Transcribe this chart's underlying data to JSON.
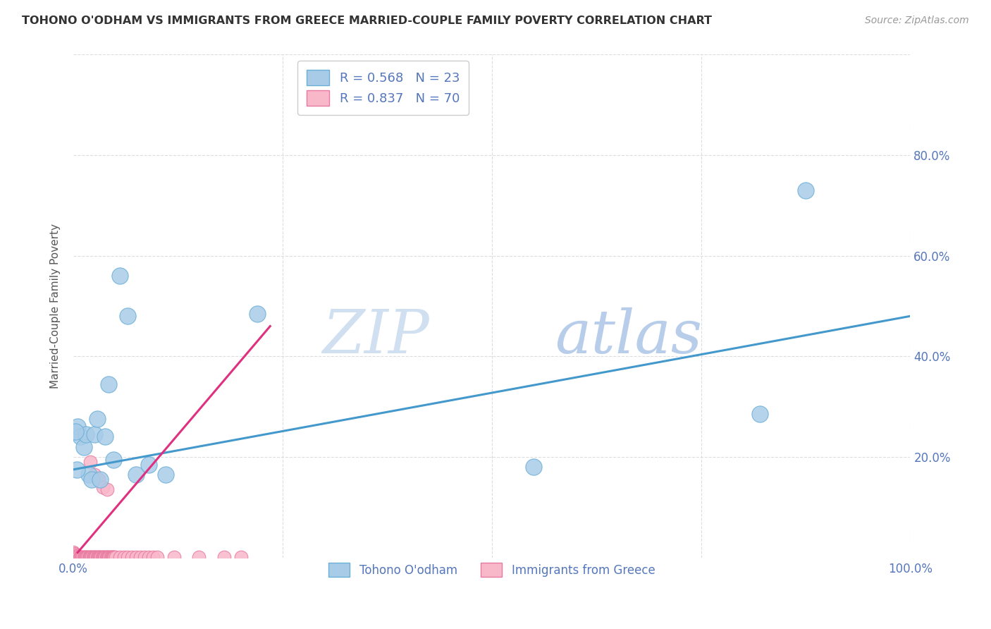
{
  "title": "TOHONO O'ODHAM VS IMMIGRANTS FROM GREECE MARRIED-COUPLE FAMILY POVERTY CORRELATION CHART",
  "source": "Source: ZipAtlas.com",
  "ylabel": "Married-Couple Family Poverty",
  "xlim": [
    0,
    1.0
  ],
  "ylim": [
    0,
    1.0
  ],
  "watermark_zip": "ZIP",
  "watermark_atlas": "atlas",
  "blue_scatter_color": "#a8cce8",
  "blue_scatter_edge": "#6aaed6",
  "pink_scatter_color": "#f9b8ca",
  "pink_scatter_edge": "#e87aa0",
  "blue_line_color": "#4499cc",
  "pink_line_color": "#e03080",
  "axis_tick_color": "#5577bb",
  "ylabel_color": "#555555",
  "title_color": "#333333",
  "source_color": "#999999",
  "grid_color": "#dddddd",
  "bg_color": "#ffffff",
  "legend_label_blue": "Tohono O'odham",
  "legend_label_pink": "Immigrants from Greece",
  "blue_scatter_x": [
    0.005,
    0.008,
    0.012,
    0.015,
    0.018,
    0.022,
    0.025,
    0.028,
    0.032,
    0.038,
    0.042,
    0.048,
    0.055,
    0.065,
    0.075,
    0.09,
    0.11,
    0.22,
    0.55,
    0.82,
    0.875,
    0.002,
    0.004
  ],
  "blue_scatter_y": [
    0.26,
    0.24,
    0.22,
    0.245,
    0.165,
    0.155,
    0.245,
    0.275,
    0.155,
    0.24,
    0.345,
    0.195,
    0.56,
    0.48,
    0.165,
    0.185,
    0.165,
    0.485,
    0.18,
    0.285,
    0.73,
    0.25,
    0.175
  ],
  "pink_scatter_x": [
    0.0,
    0.001,
    0.002,
    0.003,
    0.004,
    0.005,
    0.006,
    0.007,
    0.008,
    0.009,
    0.01,
    0.011,
    0.012,
    0.013,
    0.014,
    0.015,
    0.016,
    0.017,
    0.018,
    0.019,
    0.02,
    0.021,
    0.022,
    0.023,
    0.024,
    0.025,
    0.026,
    0.027,
    0.028,
    0.029,
    0.03,
    0.031,
    0.032,
    0.033,
    0.034,
    0.035,
    0.036,
    0.037,
    0.038,
    0.039,
    0.04,
    0.041,
    0.042,
    0.043,
    0.044,
    0.045,
    0.046,
    0.047,
    0.048,
    0.049,
    0.05,
    0.055,
    0.06,
    0.065,
    0.07,
    0.075,
    0.08,
    0.085,
    0.09,
    0.095,
    0.1,
    0.12,
    0.15,
    0.18,
    0.2,
    0.02,
    0.025,
    0.03,
    0.035,
    0.04
  ],
  "pink_scatter_y": [
    0.01,
    0.008,
    0.006,
    0.004,
    0.003,
    0.002,
    0.001,
    0.001,
    0.001,
    0.001,
    0.001,
    0.001,
    0.001,
    0.001,
    0.001,
    0.001,
    0.001,
    0.001,
    0.001,
    0.001,
    0.001,
    0.001,
    0.001,
    0.001,
    0.001,
    0.001,
    0.001,
    0.001,
    0.001,
    0.001,
    0.001,
    0.001,
    0.001,
    0.001,
    0.001,
    0.001,
    0.001,
    0.001,
    0.001,
    0.001,
    0.001,
    0.001,
    0.001,
    0.001,
    0.001,
    0.001,
    0.001,
    0.001,
    0.001,
    0.001,
    0.001,
    0.001,
    0.001,
    0.001,
    0.001,
    0.001,
    0.001,
    0.001,
    0.001,
    0.001,
    0.001,
    0.001,
    0.001,
    0.001,
    0.001,
    0.19,
    0.165,
    0.155,
    0.14,
    0.135
  ],
  "blue_line_x": [
    0.0,
    1.0
  ],
  "blue_line_y": [
    0.175,
    0.48
  ],
  "pink_line_x": [
    0.005,
    0.235
  ],
  "pink_line_y": [
    0.01,
    0.46
  ]
}
